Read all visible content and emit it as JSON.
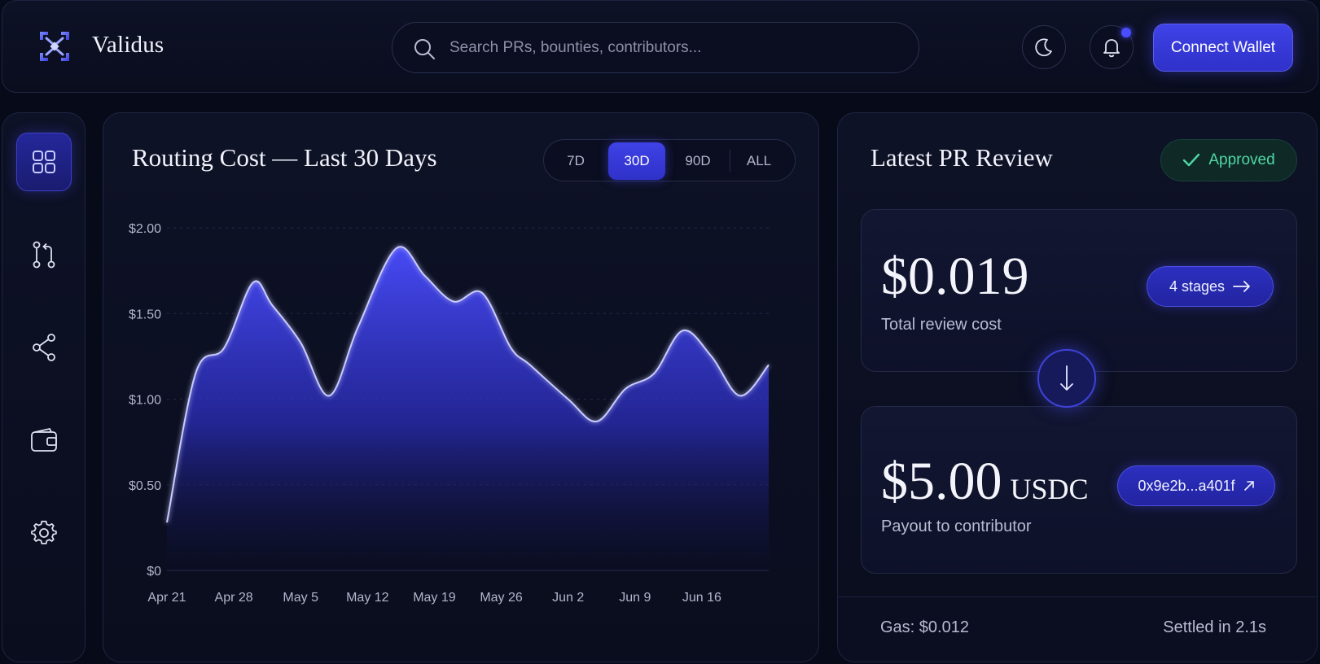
{
  "header": {
    "brand": "Validus",
    "search_placeholder": "Search PRs, bounties, contributors...",
    "connect_label": "Connect Wallet",
    "theme_icon": "moon-icon",
    "notification_icon": "bell-icon"
  },
  "sidebar": {
    "items": [
      {
        "name": "dashboard",
        "icon": "grid-icon",
        "active": true
      },
      {
        "name": "pull-requests",
        "icon": "git-pull-request-icon",
        "active": false
      },
      {
        "name": "share",
        "icon": "share-icon",
        "active": false
      },
      {
        "name": "wallet",
        "icon": "wallet-icon",
        "active": false
      },
      {
        "name": "settings",
        "icon": "gear-icon",
        "active": false
      }
    ]
  },
  "chart_panel": {
    "title": "Routing Cost — Last 30 Days",
    "ranges": [
      "7D",
      "30D",
      "90D",
      "ALL"
    ],
    "selected_range": "30D"
  },
  "chart_data": {
    "type": "area",
    "title": "Routing Cost — Last 30 Days",
    "x_ticks": [
      "Apr 21",
      "Apr 28",
      "May 5",
      "May 12",
      "May 19",
      "May 26",
      "Jun 2",
      "Jun 9",
      "Jun 16"
    ],
    "y_ticks": [
      "$0",
      "$0.50",
      "$1.00",
      "$1.50",
      "$2.00"
    ],
    "ylim": [
      0,
      2.0
    ],
    "xlim": [
      0,
      63
    ],
    "x": [
      0,
      3,
      6,
      9,
      11,
      14,
      17,
      20,
      24,
      27,
      30,
      33,
      36,
      38,
      42,
      45,
      48,
      51,
      54,
      57,
      60,
      63
    ],
    "values": [
      0.28,
      1.15,
      1.3,
      1.68,
      1.55,
      1.33,
      1.02,
      1.42,
      1.88,
      1.72,
      1.57,
      1.62,
      1.3,
      1.2,
      1.0,
      0.87,
      1.06,
      1.15,
      1.4,
      1.25,
      1.02,
      1.2
    ],
    "color": "#4a4dff",
    "grid": true
  },
  "review_panel": {
    "title": "Latest PR Review",
    "status": "Approved",
    "status_color": "#4fd6a4",
    "cost": {
      "amount": "$0.019",
      "label": "Total review cost",
      "stages_label": "4 stages"
    },
    "payout": {
      "amount": "$5.00",
      "unit": "USDC",
      "label": "Payout to contributor",
      "address": "0x9e2b...a401f"
    },
    "gas": "Gas: $0.012",
    "settled": "Settled in 2.1s"
  },
  "colors": {
    "accent": "#3f42e6",
    "background": "#070a18",
    "success": "#4fd6a4"
  }
}
